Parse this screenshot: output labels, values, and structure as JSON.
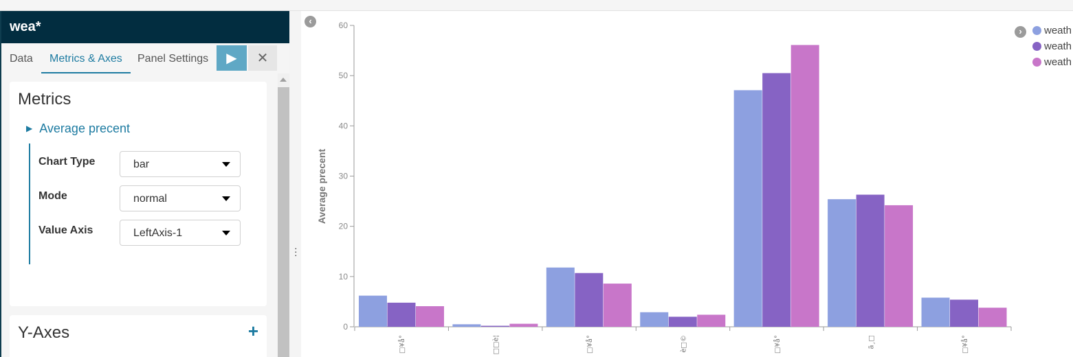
{
  "sidebar": {
    "title": "wea*",
    "tabs": [
      {
        "label": "Data"
      },
      {
        "label": "Metrics & Axes",
        "active": true
      },
      {
        "label": "Panel Settings"
      }
    ],
    "run_icon": "play-icon",
    "close_icon": "close-icon",
    "metrics": {
      "title": "Metrics",
      "metric_label": "Average precent",
      "fields": [
        {
          "label": "Chart Type",
          "value": "bar"
        },
        {
          "label": "Mode",
          "value": "normal"
        },
        {
          "label": "Value Axis",
          "value": "LeftAxis-1"
        }
      ]
    },
    "yaxes": {
      "title": "Y-Axes",
      "add_label": "+"
    }
  },
  "chart_data": {
    "type": "bar",
    "ylabel": "Average precent",
    "ylim": [
      0,
      60
    ],
    "yticks": [
      0,
      10,
      20,
      30,
      40,
      50,
      60
    ],
    "categories": [
      "□¥å°",
      "□□è¦",
      "□¥å°",
      "è□©",
      "□¥å°",
      "ä¸□",
      "□¥å°"
    ],
    "series": [
      {
        "name": "weath",
        "color": "#8da0e0",
        "values": [
          6.2,
          0.5,
          11.8,
          2.9,
          47.1,
          25.4,
          5.8
        ]
      },
      {
        "name": "weath",
        "color": "#8663c4",
        "values": [
          4.8,
          0.2,
          10.7,
          2.0,
          50.5,
          26.3,
          5.4
        ]
      },
      {
        "name": "weath",
        "color": "#c876c9",
        "values": [
          4.1,
          0.6,
          8.6,
          2.4,
          56.1,
          24.2,
          3.8
        ]
      }
    ],
    "legend_position": "top-right"
  }
}
